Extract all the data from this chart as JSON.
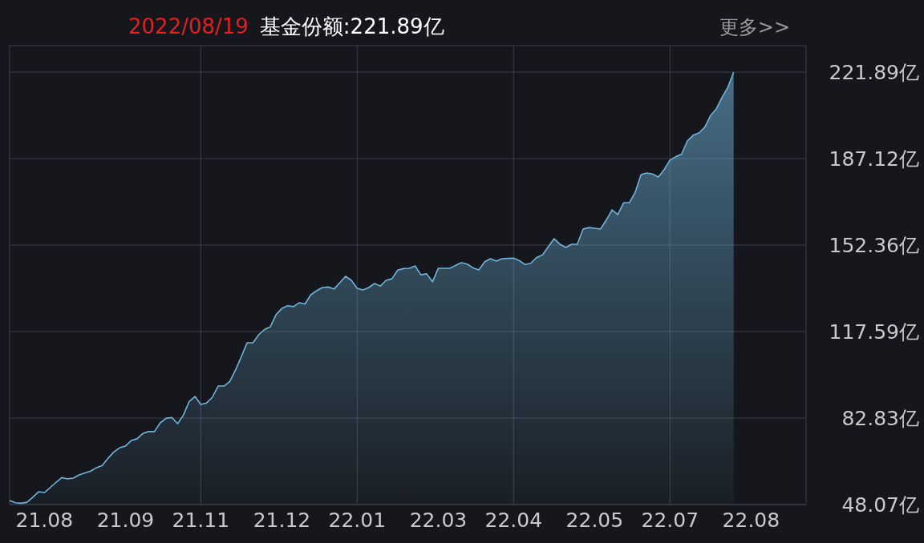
{
  "chart_data": {
    "type": "area",
    "title": "2022/08/19",
    "subtitle": "基金份额:221.89亿",
    "annotations": [
      "更多>>"
    ],
    "categories": [
      null,
      null,
      null,
      null,
      null,
      null,
      "21.08",
      null,
      null,
      null,
      null,
      null,
      null,
      null,
      null,
      null,
      null,
      null,
      null,
      null,
      "21.09",
      null,
      null,
      null,
      null,
      null,
      null,
      null,
      null,
      null,
      null,
      null,
      null,
      "21.11",
      null,
      null,
      null,
      null,
      null,
      null,
      null,
      null,
      null,
      null,
      null,
      null,
      null,
      "21.12",
      null,
      null,
      null,
      null,
      null,
      null,
      null,
      null,
      null,
      null,
      null,
      null,
      "22.01",
      null,
      null,
      null,
      null,
      null,
      null,
      null,
      null,
      null,
      null,
      null,
      null,
      null,
      "22.03",
      null,
      null,
      null,
      null,
      null,
      null,
      null,
      null,
      null,
      null,
      null,
      null,
      "22.04",
      null,
      null,
      null,
      null,
      null,
      null,
      null,
      null,
      null,
      null,
      null,
      null,
      null,
      "22.05",
      null,
      null,
      null,
      null,
      null,
      null,
      null,
      null,
      null,
      null,
      null,
      null,
      "22.07",
      null,
      null,
      null,
      null,
      null,
      null,
      null,
      null,
      null,
      null,
      null,
      null,
      null,
      "22.08",
      null,
      null,
      null,
      null,
      null,
      null,
      null,
      null,
      null
    ],
    "series": [
      {
        "color": "#6fb4db",
        "values": [
          49.7,
          48.8,
          48.6,
          49.0,
          51.0,
          53.2,
          52.9,
          54.9,
          57.0,
          58.9,
          58.4,
          58.7,
          60.0,
          60.8,
          61.5,
          62.9,
          63.8,
          66.7,
          69.2,
          70.9,
          71.6,
          73.8,
          74.5,
          76.6,
          77.4,
          77.4,
          80.9,
          82.7,
          83.1,
          80.6,
          84.0,
          89.5,
          91.5,
          88.3,
          88.9,
          91.2,
          95.7,
          95.7,
          97.5,
          102.2,
          107.5,
          113.1,
          113.1,
          116.3,
          118.4,
          119.5,
          124.4,
          126.9,
          128.0,
          127.6,
          129.2,
          128.7,
          132.4,
          134.0,
          135.3,
          135.5,
          134.7,
          137.2,
          139.8,
          138.2,
          135.0,
          134.3,
          135.3,
          136.9,
          135.9,
          138.2,
          138.8,
          142.3,
          142.9,
          143.0,
          144.0,
          140.4,
          140.8,
          137.6,
          143.0,
          143.0,
          143.0,
          144.2,
          145.3,
          144.7,
          143.2,
          142.4,
          145.6,
          146.9,
          145.9,
          146.9,
          147.0,
          147.1,
          146.1,
          144.5,
          145.1,
          147.4,
          148.4,
          151.7,
          154.9,
          152.7,
          151.4,
          152.7,
          152.7,
          158.8,
          159.4,
          159.1,
          158.8,
          162.4,
          166.5,
          164.6,
          169.4,
          169.4,
          173.6,
          180.7,
          181.3,
          180.9,
          179.7,
          182.7,
          186.5,
          187.9,
          188.9,
          194.2,
          196.5,
          197.4,
          199.7,
          204.4,
          207.1,
          211.8,
          215.8,
          221.9,
          null,
          null,
          null,
          null,
          null,
          null,
          null,
          null,
          null,
          null,
          null,
          null
        ]
      }
    ],
    "ylim": [
      48.07,
      232.5
    ],
    "yticks": [
      {
        "value": 48.07,
        "label": "48.07亿"
      },
      {
        "value": 82.83,
        "label": "82.83亿"
      },
      {
        "value": 117.59,
        "label": "117.59亿"
      },
      {
        "value": 152.36,
        "label": "152.36亿"
      },
      {
        "value": 187.12,
        "label": "187.12亿"
      },
      {
        "value": 221.89,
        "label": "221.89亿"
      }
    ],
    "grid": true
  }
}
